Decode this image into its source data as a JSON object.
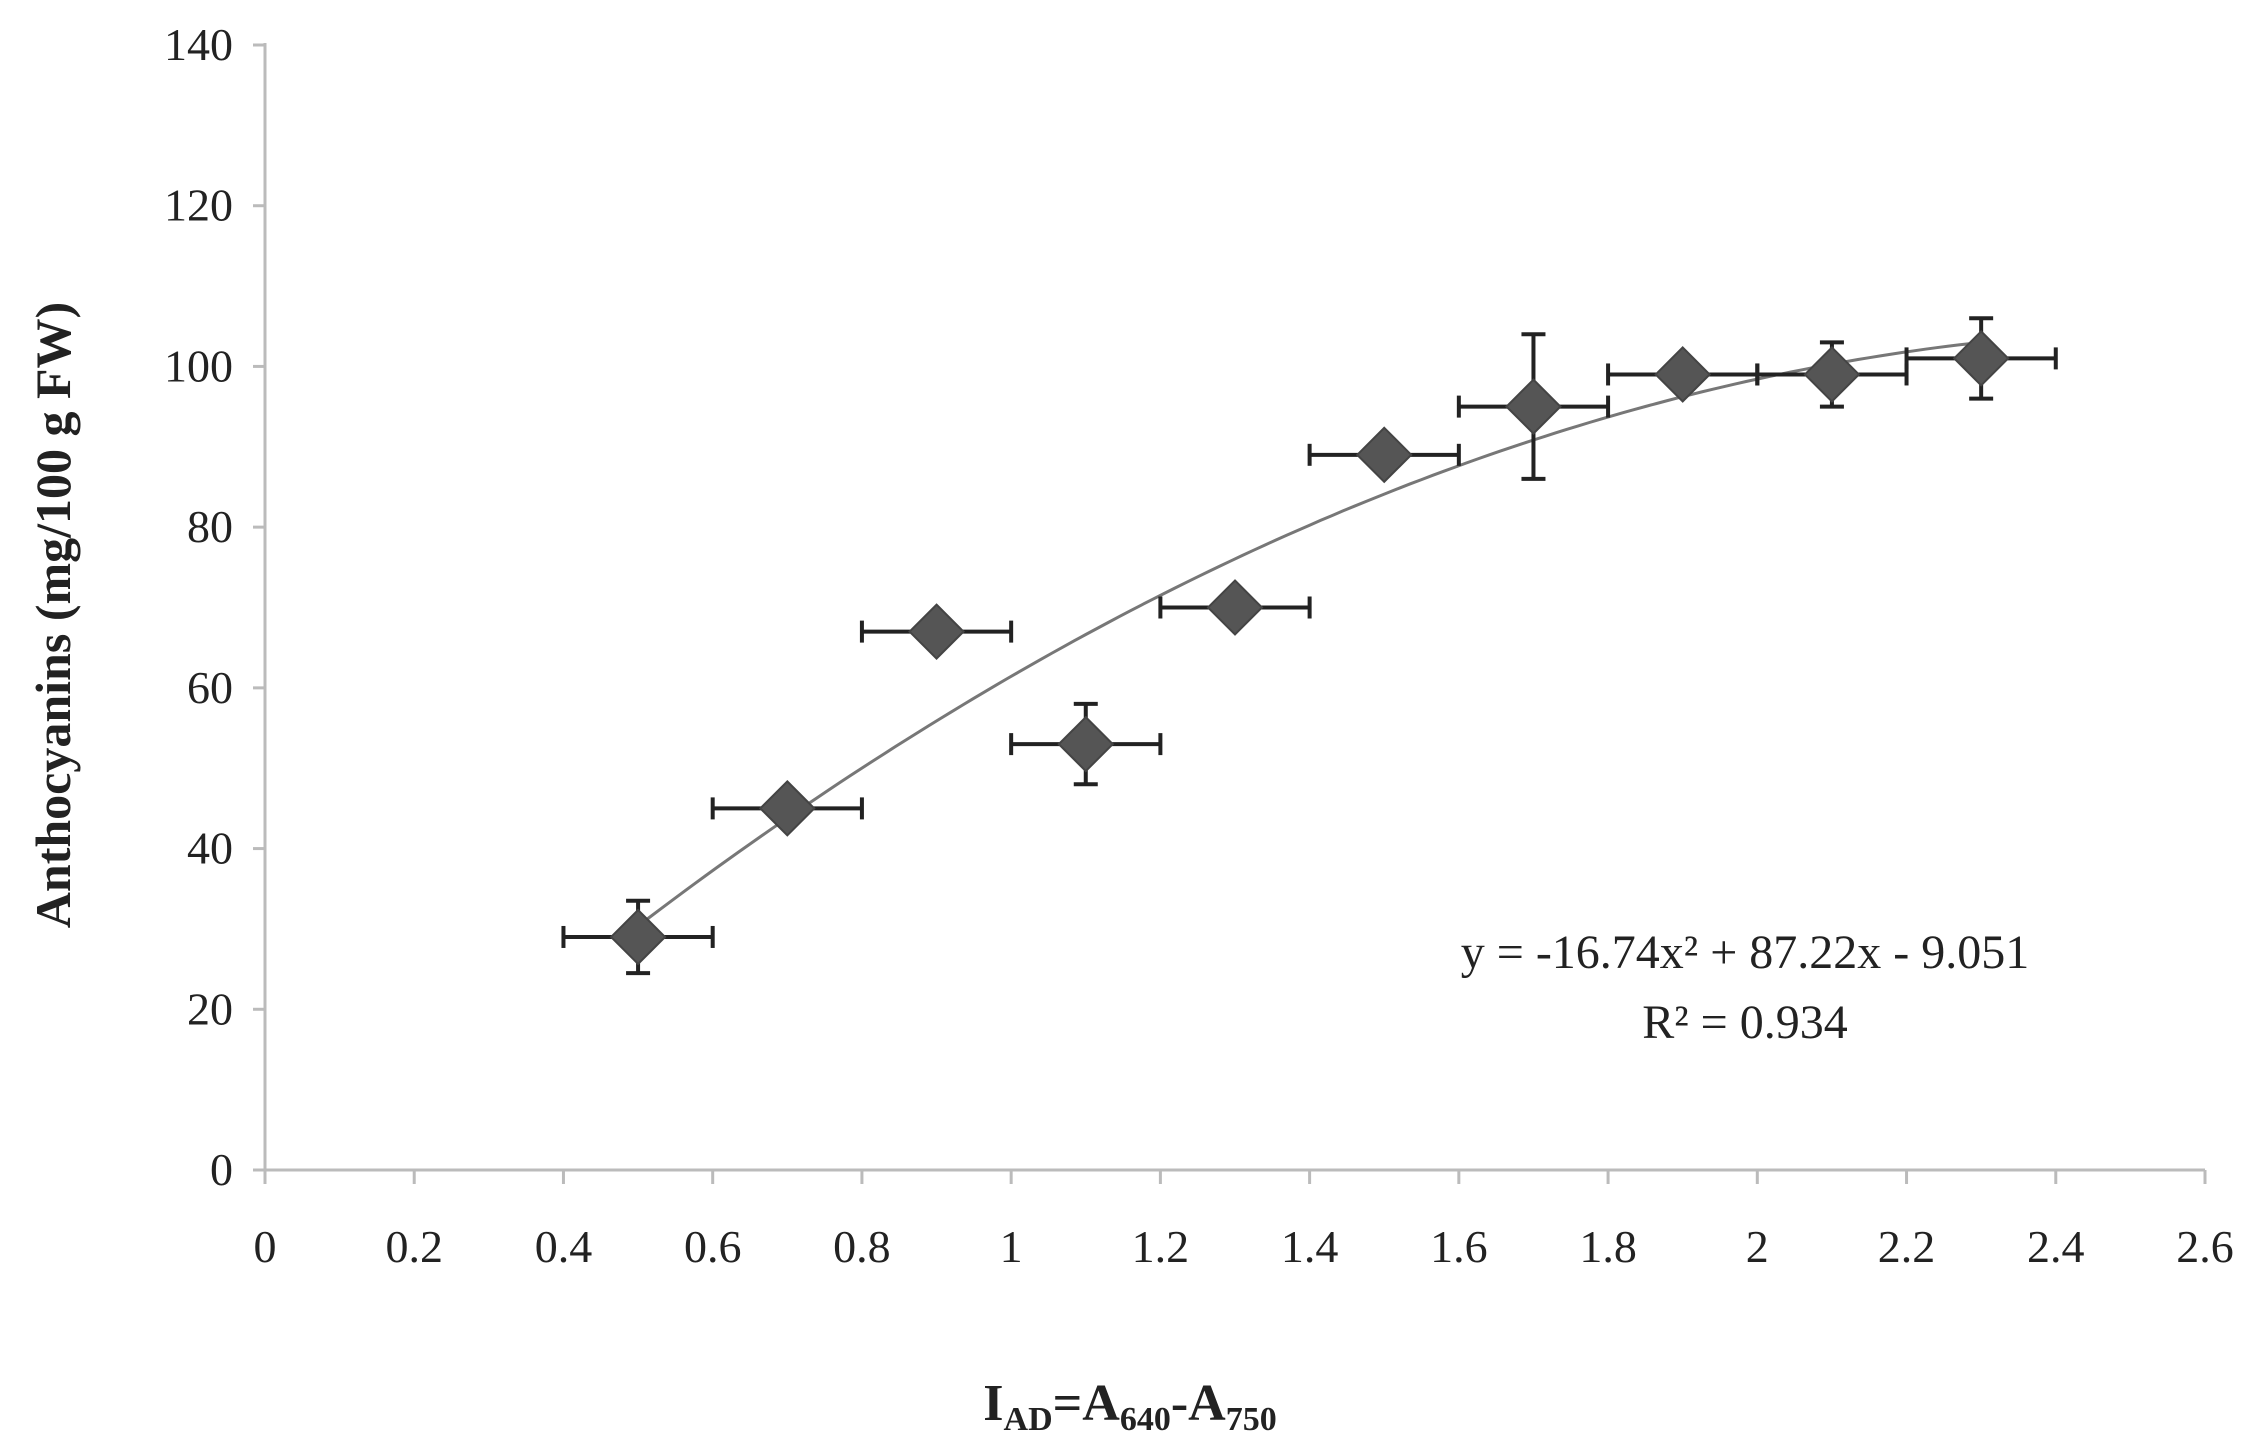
{
  "chart_data": {
    "type": "scatter",
    "xlabel": {
      "main": "I",
      "sub1": "AD",
      "eq": "=A",
      "sub2": "640",
      "dash": "-A",
      "sub3": "750"
    },
    "ylabel": "Anthocyanins (mg/100 g FW)",
    "xlim": [
      0,
      2.6
    ],
    "ylim": [
      0,
      140
    ],
    "xticks": [
      "0",
      "0.2",
      "0.4",
      "0.6",
      "0.8",
      "1",
      "1.2",
      "1.4",
      "1.6",
      "1.8",
      "2",
      "2.2",
      "2.4",
      "2.6"
    ],
    "yticks": [
      "0",
      "20",
      "40",
      "60",
      "80",
      "100",
      "120",
      "140"
    ],
    "grid": false,
    "points": [
      {
        "x": 0.5,
        "y": 29,
        "xerr": 0.1,
        "yerr": 4.5
      },
      {
        "x": 0.7,
        "y": 45,
        "xerr": 0.1,
        "yerr": 0
      },
      {
        "x": 0.9,
        "y": 67,
        "xerr": 0.1,
        "yerr": 0
      },
      {
        "x": 1.1,
        "y": 53,
        "xerr": 0.1,
        "yerr": 5
      },
      {
        "x": 1.3,
        "y": 70,
        "xerr": 0.1,
        "yerr": 0
      },
      {
        "x": 1.5,
        "y": 89,
        "xerr": 0.1,
        "yerr": 0
      },
      {
        "x": 1.7,
        "y": 95,
        "xerr": 0.1,
        "yerr": 9
      },
      {
        "x": 1.9,
        "y": 99,
        "xerr": 0.1,
        "yerr": 0
      },
      {
        "x": 2.1,
        "y": 99,
        "xerr": 0.1,
        "yerr": 4
      },
      {
        "x": 2.3,
        "y": 101,
        "xerr": 0.1,
        "yerr": 5
      }
    ],
    "trendline": {
      "type": "polynomial",
      "a": -16.74,
      "b": 87.22,
      "c": -9.051,
      "x_range": [
        0.5,
        2.3
      ]
    },
    "annotation": {
      "equation": "y = -16.74x² + 87.22x - 9.051",
      "r2": "R² = 0.934"
    },
    "colors": {
      "marker": "#555555",
      "axis": "#bbbbbb",
      "errorbar": "#222222",
      "trend": "#777777"
    }
  }
}
